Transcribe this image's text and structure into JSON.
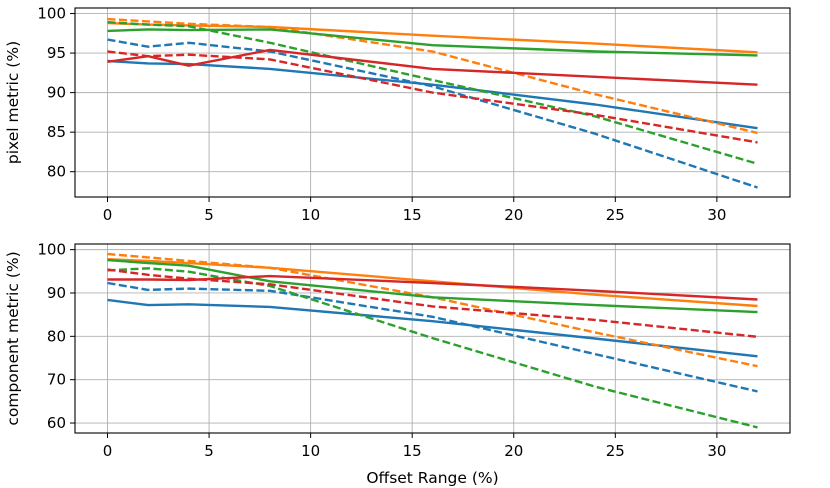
{
  "colors": {
    "blue": "#1f77b4",
    "orange": "#ff7f0e",
    "green": "#2ca02c",
    "red": "#d62728"
  },
  "chart_data": [
    {
      "type": "line",
      "title": "",
      "xlabel": "",
      "ylabel": "pixel metric (%)",
      "xlim": [
        -1.6,
        33.6
      ],
      "ylim": [
        76.8,
        100.7
      ],
      "xticks": [
        0,
        5,
        10,
        15,
        20,
        25,
        30
      ],
      "yticks": [
        80,
        85,
        90,
        95,
        100
      ],
      "grid": true,
      "legend": "none",
      "series": [
        {
          "color": "blue",
          "style": "solid",
          "x": [
            0,
            2,
            4,
            8,
            16,
            24,
            32
          ],
          "y": [
            94.0,
            93.7,
            93.6,
            93.0,
            91.0,
            88.5,
            85.5
          ]
        },
        {
          "color": "blue",
          "style": "dashed",
          "x": [
            0,
            2,
            4,
            8,
            16,
            24,
            32
          ],
          "y": [
            96.7,
            95.8,
            96.3,
            95.2,
            90.8,
            84.8,
            78.0
          ]
        },
        {
          "color": "orange",
          "style": "solid",
          "x": [
            0,
            2,
            4,
            8,
            16,
            24,
            32
          ],
          "y": [
            98.8,
            98.6,
            98.5,
            98.3,
            97.2,
            96.2,
            95.1
          ]
        },
        {
          "color": "orange",
          "style": "dashed",
          "x": [
            0,
            2,
            4,
            8,
            16,
            24,
            32
          ],
          "y": [
            99.3,
            99.0,
            98.7,
            98.3,
            95.2,
            89.8,
            84.9
          ]
        },
        {
          "color": "green",
          "style": "solid",
          "x": [
            0,
            2,
            4,
            8,
            16,
            24,
            32
          ],
          "y": [
            97.8,
            98.0,
            97.9,
            98.0,
            96.0,
            95.2,
            94.7
          ]
        },
        {
          "color": "green",
          "style": "dashed",
          "x": [
            0,
            2,
            4,
            8,
            16,
            24,
            32
          ],
          "y": [
            98.9,
            98.6,
            98.4,
            96.3,
            91.6,
            87.0,
            81.0
          ]
        },
        {
          "color": "red",
          "style": "solid",
          "x": [
            0,
            2,
            4,
            8,
            16,
            24,
            32
          ],
          "y": [
            93.9,
            94.6,
            93.4,
            95.4,
            93.0,
            92.0,
            91.0
          ]
        },
        {
          "color": "red",
          "style": "dashed",
          "x": [
            0,
            2,
            4,
            8,
            16,
            24,
            32
          ],
          "y": [
            95.2,
            94.6,
            94.8,
            94.2,
            90.0,
            87.2,
            83.7
          ]
        }
      ]
    },
    {
      "type": "line",
      "title": "",
      "xlabel": "Offset Range (%)",
      "ylabel": "component metric (%)",
      "xlim": [
        -1.6,
        33.6
      ],
      "ylim": [
        57.7,
        101.3
      ],
      "xticks": [
        0,
        5,
        10,
        15,
        20,
        25,
        30
      ],
      "yticks": [
        60,
        70,
        80,
        90,
        100
      ],
      "grid": true,
      "legend": "none",
      "series": [
        {
          "color": "blue",
          "style": "solid",
          "x": [
            0,
            2,
            4,
            8,
            16,
            24,
            32
          ],
          "y": [
            88.4,
            87.2,
            87.4,
            86.8,
            83.5,
            79.5,
            75.4
          ]
        },
        {
          "color": "blue",
          "style": "dashed",
          "x": [
            0,
            2,
            4,
            8,
            16,
            24,
            32
          ],
          "y": [
            92.3,
            90.7,
            91.0,
            90.5,
            84.5,
            75.9,
            67.3
          ]
        },
        {
          "color": "orange",
          "style": "solid",
          "x": [
            0,
            2,
            4,
            8,
            16,
            24,
            32
          ],
          "y": [
            97.8,
            97.4,
            96.9,
            95.8,
            92.7,
            89.6,
            87.0
          ]
        },
        {
          "color": "orange",
          "style": "dashed",
          "x": [
            0,
            2,
            4,
            8,
            16,
            24,
            32
          ],
          "y": [
            99.0,
            98.2,
            97.4,
            95.8,
            89.0,
            80.9,
            73.1
          ]
        },
        {
          "color": "green",
          "style": "solid",
          "x": [
            0,
            2,
            4,
            8,
            16,
            24,
            32
          ],
          "y": [
            97.6,
            96.9,
            96.3,
            92.7,
            89.0,
            87.2,
            85.6
          ]
        },
        {
          "color": "green",
          "style": "dashed",
          "x": [
            0,
            2,
            4,
            8,
            16,
            24,
            32
          ],
          "y": [
            95.2,
            95.7,
            94.9,
            91.6,
            79.6,
            68.4,
            59.0
          ]
        },
        {
          "color": "red",
          "style": "solid",
          "x": [
            0,
            2,
            4,
            8,
            16,
            24,
            32
          ],
          "y": [
            93.1,
            93.1,
            93.0,
            93.9,
            92.3,
            90.5,
            88.5
          ]
        },
        {
          "color": "red",
          "style": "dashed",
          "x": [
            0,
            2,
            4,
            8,
            16,
            24,
            32
          ],
          "y": [
            95.4,
            94.2,
            93.3,
            92.0,
            86.9,
            83.8,
            79.9
          ]
        }
      ]
    }
  ]
}
